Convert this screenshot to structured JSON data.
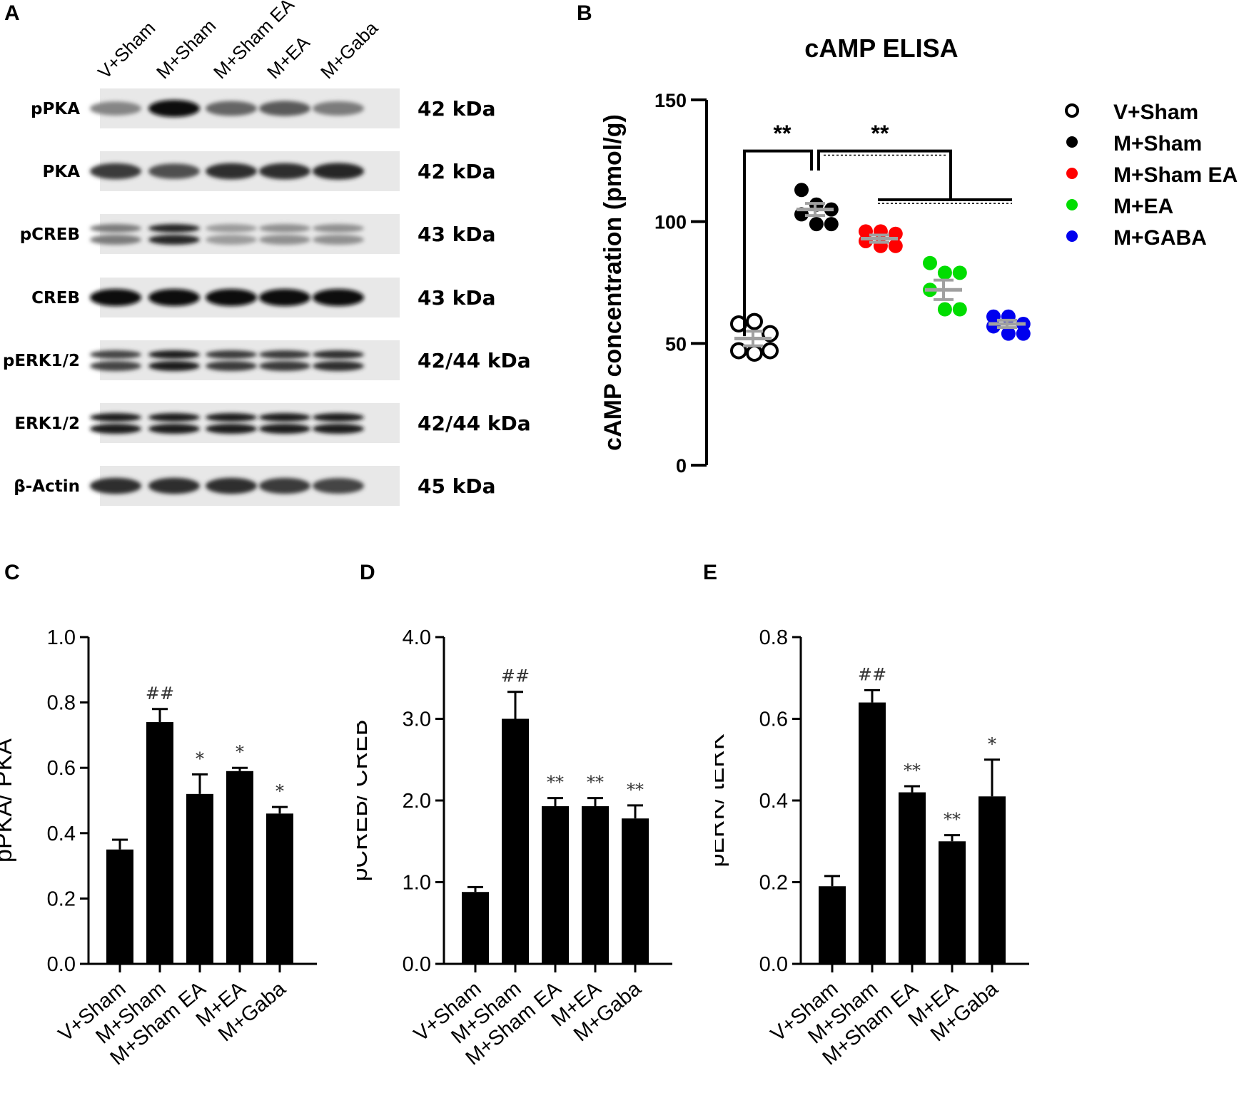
{
  "panel_letters": {
    "a": "A",
    "b": "B",
    "c": "C",
    "d": "D",
    "e": "E"
  },
  "blot": {
    "lanes": [
      "V+Sham",
      "M+Sham",
      "M+Sham EA",
      "M+EA",
      "M+Gaba"
    ],
    "rows": [
      {
        "label": "pPKA",
        "kda": "42 kDa"
      },
      {
        "label": "PKA",
        "kda": "42 kDa"
      },
      {
        "label": "pCREB",
        "kda": "43 kDa"
      },
      {
        "label": "CREB",
        "kda": "43 kDa"
      },
      {
        "label": "pERK1/2",
        "kda": "42/44 kDa"
      },
      {
        "label": "ERK1/2",
        "kda": "42/44 kDa"
      },
      {
        "label": "β-Actin",
        "kda": "45 kDa"
      }
    ]
  },
  "chart_data": [
    {
      "panel": "B",
      "type": "scatter",
      "title": "cAMP ELISA",
      "ylabel": "cAMP concentration (pmol/g)",
      "ylim": [
        0,
        150
      ],
      "yticks": [
        0,
        50,
        100,
        150
      ],
      "yticklabels": [
        "0",
        "50",
        "100",
        "150"
      ],
      "groups": [
        {
          "name": "V+Sham",
          "color": "#000000",
          "filled": false,
          "mean": 52,
          "sem": 3,
          "points": [
            58,
            59,
            54,
            47,
            46,
            47
          ]
        },
        {
          "name": "M+Sham",
          "color": "#000000",
          "filled": true,
          "mean": 105,
          "sem": 2.5,
          "points": [
            113,
            107,
            105,
            103,
            99,
            99
          ]
        },
        {
          "name": "M+Sham EA",
          "color": "#ff0000",
          "filled": true,
          "mean": 93,
          "sem": 1.5,
          "points": [
            96,
            96,
            95,
            92,
            90,
            90
          ]
        },
        {
          "name": "M+EA",
          "color": "#00dd00",
          "filled": true,
          "mean": 72,
          "sem": 4,
          "points": [
            83,
            79,
            79,
            72,
            64,
            64
          ]
        },
        {
          "name": "M+GABA",
          "color": "#0000ee",
          "filled": true,
          "mean": 58,
          "sem": 1.5,
          "points": [
            61,
            61,
            58,
            57,
            54,
            54
          ]
        }
      ],
      "legend": [
        "V+Sham",
        "M+Sham",
        "M+Sham EA",
        "M+EA",
        "M+GABA"
      ],
      "legend_position": "right",
      "significance": [
        "**",
        "**"
      ]
    },
    {
      "panel": "C",
      "type": "bar",
      "categories": [
        "V+Sham",
        "M+Sham",
        "M+Sham EA",
        "M+EA",
        "M+Gaba"
      ],
      "values": [
        0.35,
        0.74,
        0.52,
        0.59,
        0.46
      ],
      "errors": [
        0.03,
        0.04,
        0.06,
        0.01,
        0.02
      ],
      "annotations": [
        "",
        "##",
        "*",
        "*",
        "*"
      ],
      "ylabel": "pPKA/ PKA",
      "ylim": [
        0,
        1.0
      ],
      "yticks": [
        0,
        0.2,
        0.4,
        0.6,
        0.8,
        1.0
      ],
      "yticklabels": [
        "0.0",
        "0.2",
        "0.4",
        "0.6",
        "0.8",
        "1.0"
      ]
    },
    {
      "panel": "D",
      "type": "bar",
      "categories": [
        "V+Sham",
        "M+Sham",
        "M+Sham EA",
        "M+EA",
        "M+Gaba"
      ],
      "values": [
        0.88,
        3.0,
        1.93,
        1.93,
        1.78
      ],
      "errors": [
        0.06,
        0.33,
        0.1,
        0.1,
        0.16
      ],
      "annotations": [
        "",
        "##",
        "**",
        "**",
        "**"
      ],
      "ylabel": "pCREB/ CREB",
      "ylim": [
        0,
        4.0
      ],
      "yticks": [
        0,
        1,
        2,
        3,
        4
      ],
      "yticklabels": [
        "0.0",
        "1.0",
        "2.0",
        "3.0",
        "4.0"
      ]
    },
    {
      "panel": "E",
      "type": "bar",
      "categories": [
        "V+Sham",
        "M+Sham",
        "M+Sham EA",
        "M+EA",
        "M+Gaba"
      ],
      "values": [
        0.19,
        0.64,
        0.42,
        0.3,
        0.41
      ],
      "errors": [
        0.025,
        0.03,
        0.015,
        0.015,
        0.09
      ],
      "annotations": [
        "",
        "##",
        "**",
        "**",
        "*"
      ],
      "ylabel": "pERK/ tERK",
      "ylim": [
        0,
        0.8
      ],
      "yticks": [
        0,
        0.2,
        0.4,
        0.6,
        0.8
      ],
      "yticklabels": [
        "0.0",
        "0.2",
        "0.4",
        "0.6",
        "0.8"
      ]
    }
  ]
}
